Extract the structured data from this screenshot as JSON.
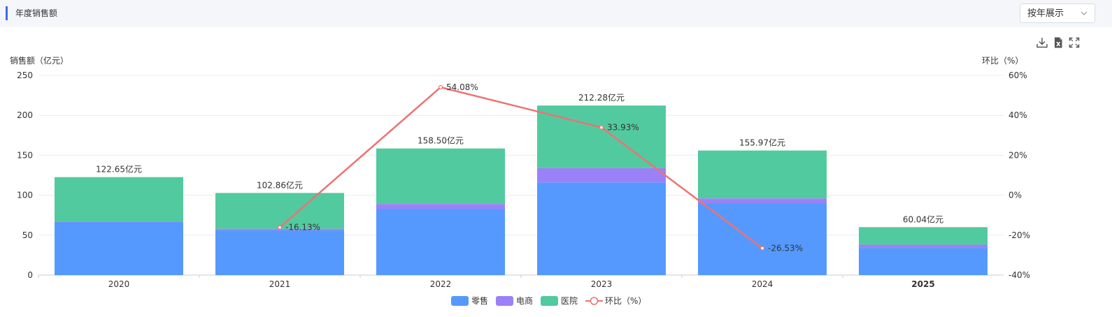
{
  "header": {
    "title": "年度销售额",
    "mode_select": {
      "value": "按年展示"
    }
  },
  "toolbar": {
    "icons": [
      "download-icon",
      "excel-export-icon",
      "fullscreen-icon"
    ]
  },
  "colors": {
    "retail": "#5599fe",
    "ecommerce": "#9b81f8",
    "hospital": "#52ca9f",
    "growth": "#ee7272",
    "accent": "#3d6de8"
  },
  "chart_data": {
    "type": "bar",
    "stacked": true,
    "categories": [
      "2020",
      "2021",
      "2022",
      "2023",
      "2024",
      "2025"
    ],
    "series": [
      {
        "name": "零售",
        "values": [
          66,
          56,
          83,
          116,
          90,
          34
        ]
      },
      {
        "name": "电商",
        "values": [
          0.8,
          2,
          6,
          18,
          6,
          4
        ]
      },
      {
        "name": "医院",
        "values": [
          55.85,
          44.86,
          69.5,
          78.28,
          59.97,
          22.04
        ]
      }
    ],
    "totals": [
      122.65,
      102.86,
      158.5,
      212.28,
      155.97,
      60.04
    ],
    "total_labels": [
      "122.65亿元",
      "102.86亿元",
      "158.50亿元",
      "212.28亿元",
      "155.97亿元",
      "60.04亿元"
    ],
    "line_series": {
      "name": "环比（%）",
      "type": "line",
      "axis": "right",
      "values": [
        null,
        -16.13,
        54.08,
        33.93,
        -26.53,
        null
      ],
      "labels": [
        "",
        "-16.13%",
        "54.08%",
        "33.93%",
        "-26.53%",
        ""
      ]
    },
    "ylabel": "销售额（亿元）",
    "y2label": "环比（%）",
    "ylim": [
      0,
      250
    ],
    "y2lim": [
      -40,
      60
    ],
    "y_ticks": [
      "0",
      "50",
      "100",
      "150",
      "200",
      "250"
    ],
    "y2_ticks": [
      "-40%",
      "-20%",
      "0%",
      "20%",
      "40%",
      "60%"
    ],
    "grid": true,
    "legend_position": "bottom-center"
  }
}
